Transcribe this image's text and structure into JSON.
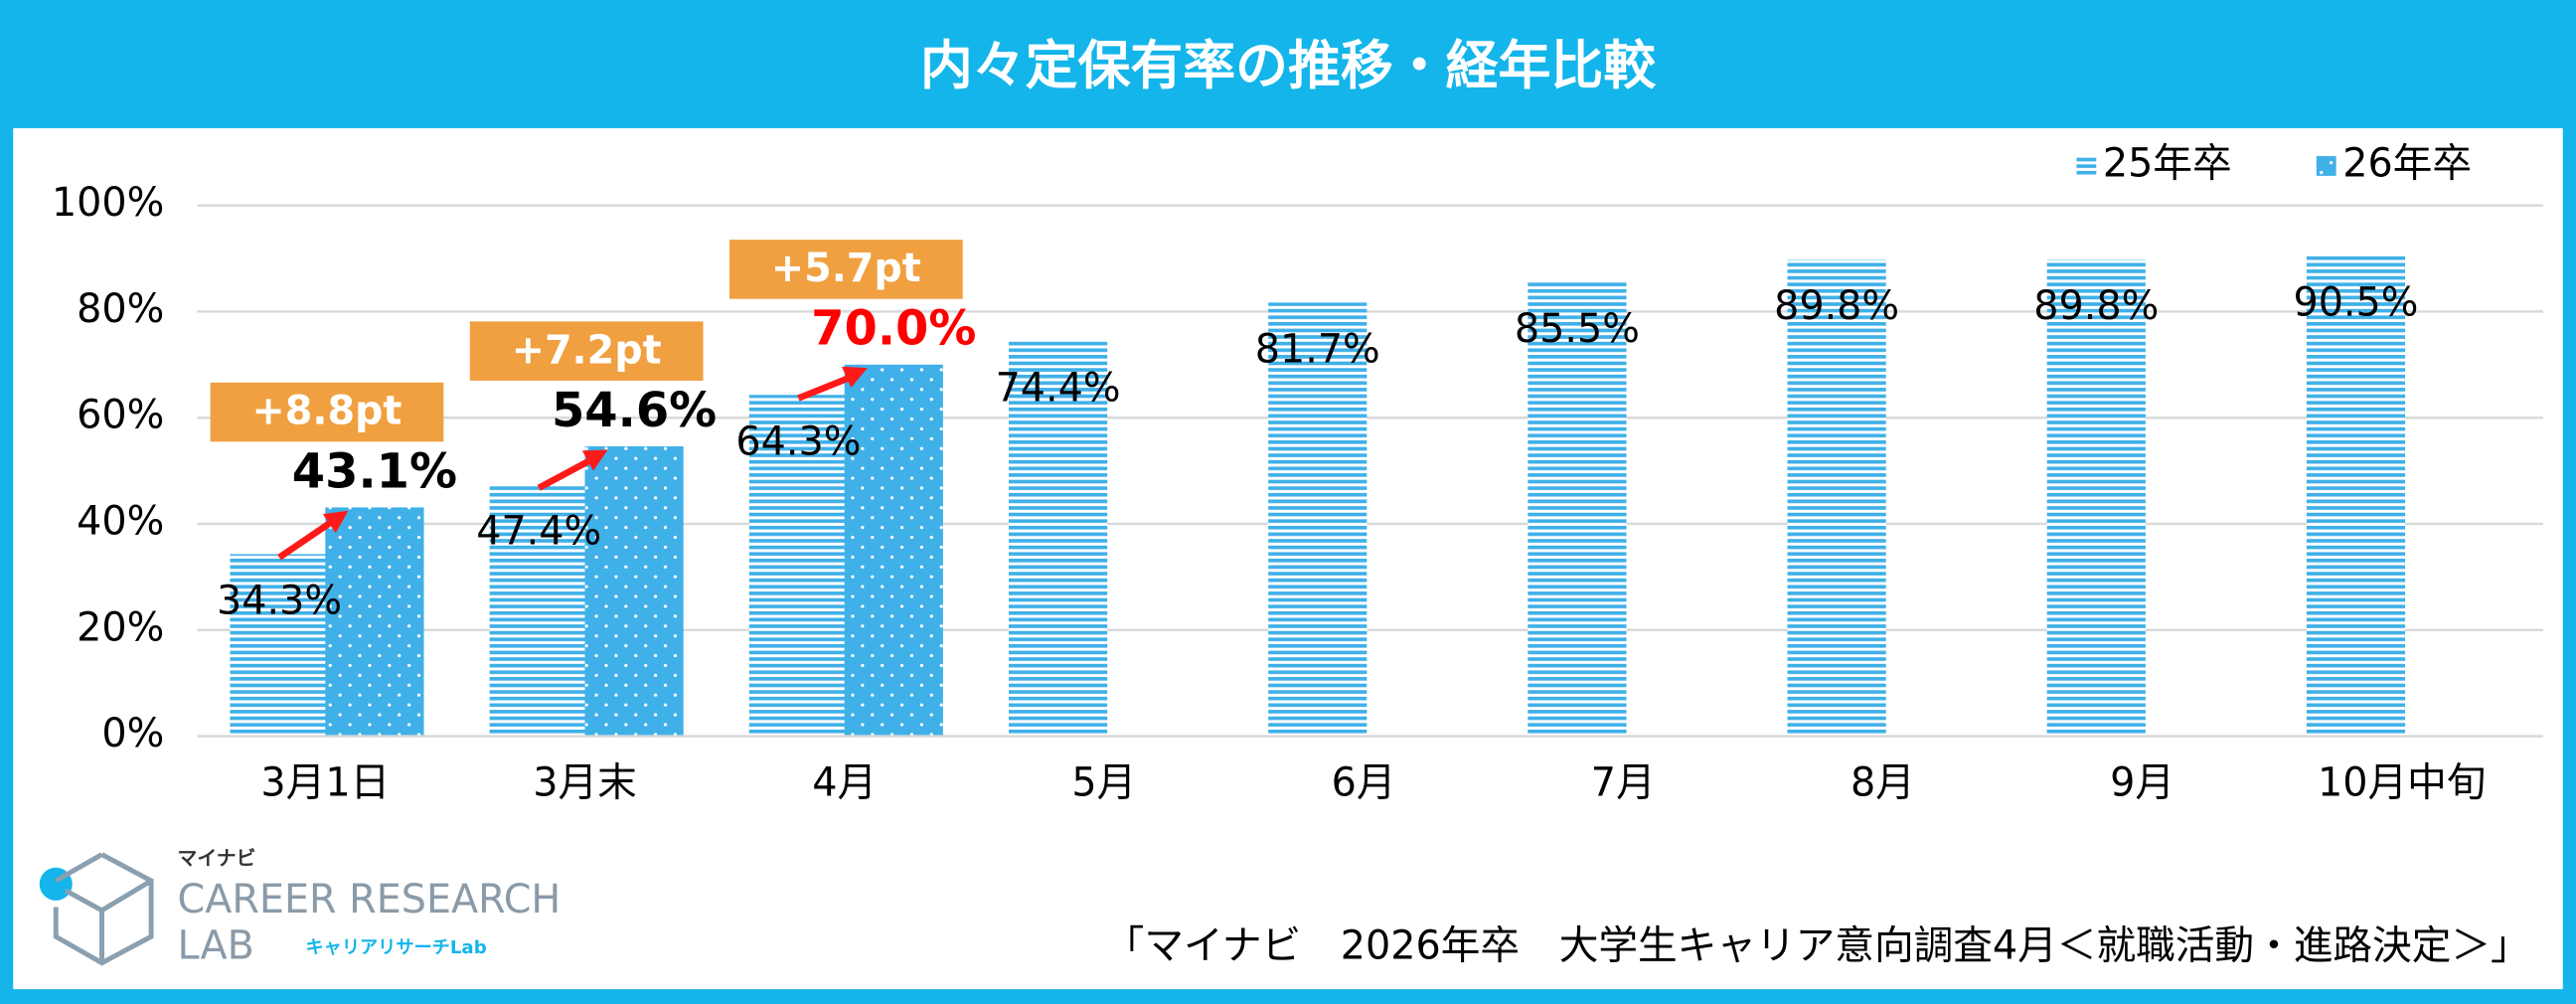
{
  "chart_data": {
    "type": "bar",
    "title": "内々定保有率の推移・経年比較",
    "categories": [
      "3月1日",
      "3月末",
      "4月",
      "5月",
      "6月",
      "7月",
      "8月",
      "9月",
      "10月中旬"
    ],
    "series": [
      {
        "name": "25年卒",
        "color": "#3fb0e8",
        "pattern": "stripes",
        "values": [
          34.3,
          47.4,
          64.3,
          74.4,
          81.7,
          85.5,
          89.8,
          89.8,
          90.5
        ],
        "value_labels": [
          "34.3%",
          "47.4%",
          "64.3%",
          "74.4%",
          "81.7%",
          "85.5%",
          "89.8%",
          "89.8%",
          "90.5%"
        ],
        "value_label_colors": [
          "#000000",
          "#000000",
          "#000000",
          "#000000",
          "#000000",
          "#000000",
          "#000000",
          "#000000",
          "#000000"
        ]
      },
      {
        "name": "26年卒",
        "color": "#3fb0e8",
        "pattern": "dots",
        "values": [
          43.1,
          54.6,
          70.0,
          null,
          null,
          null,
          null,
          null,
          null
        ],
        "value_labels": [
          "43.1%",
          "54.6%",
          "70.0%",
          null,
          null,
          null,
          null,
          null,
          null
        ],
        "value_label_colors": [
          "#000000",
          "#000000",
          "#ff0000",
          null,
          null,
          null,
          null,
          null,
          null
        ]
      }
    ],
    "annotations": [
      "+8.8pt",
      "+7.2pt",
      "+5.7pt"
    ],
    "ylim": [
      0,
      100
    ],
    "yticks": [
      {
        "value": 0,
        "label": "0%"
      },
      {
        "value": 20,
        "label": "20%"
      },
      {
        "value": 40,
        "label": "40%"
      },
      {
        "value": 60,
        "label": "60%"
      },
      {
        "value": 80,
        "label": "80%"
      },
      {
        "value": 100,
        "label": "100%"
      }
    ],
    "grid": true,
    "legend": "top-right"
  },
  "footer": {
    "source": "「マイナビ　2026年卒　大学生キャリア意向調査4月＜就職活動・進路決定＞」",
    "logo": {
      "brand": "マイナビ",
      "line1": "CAREER RESEARCH",
      "line2": "LAB",
      "sub": "キャリアリサーチLab"
    }
  }
}
